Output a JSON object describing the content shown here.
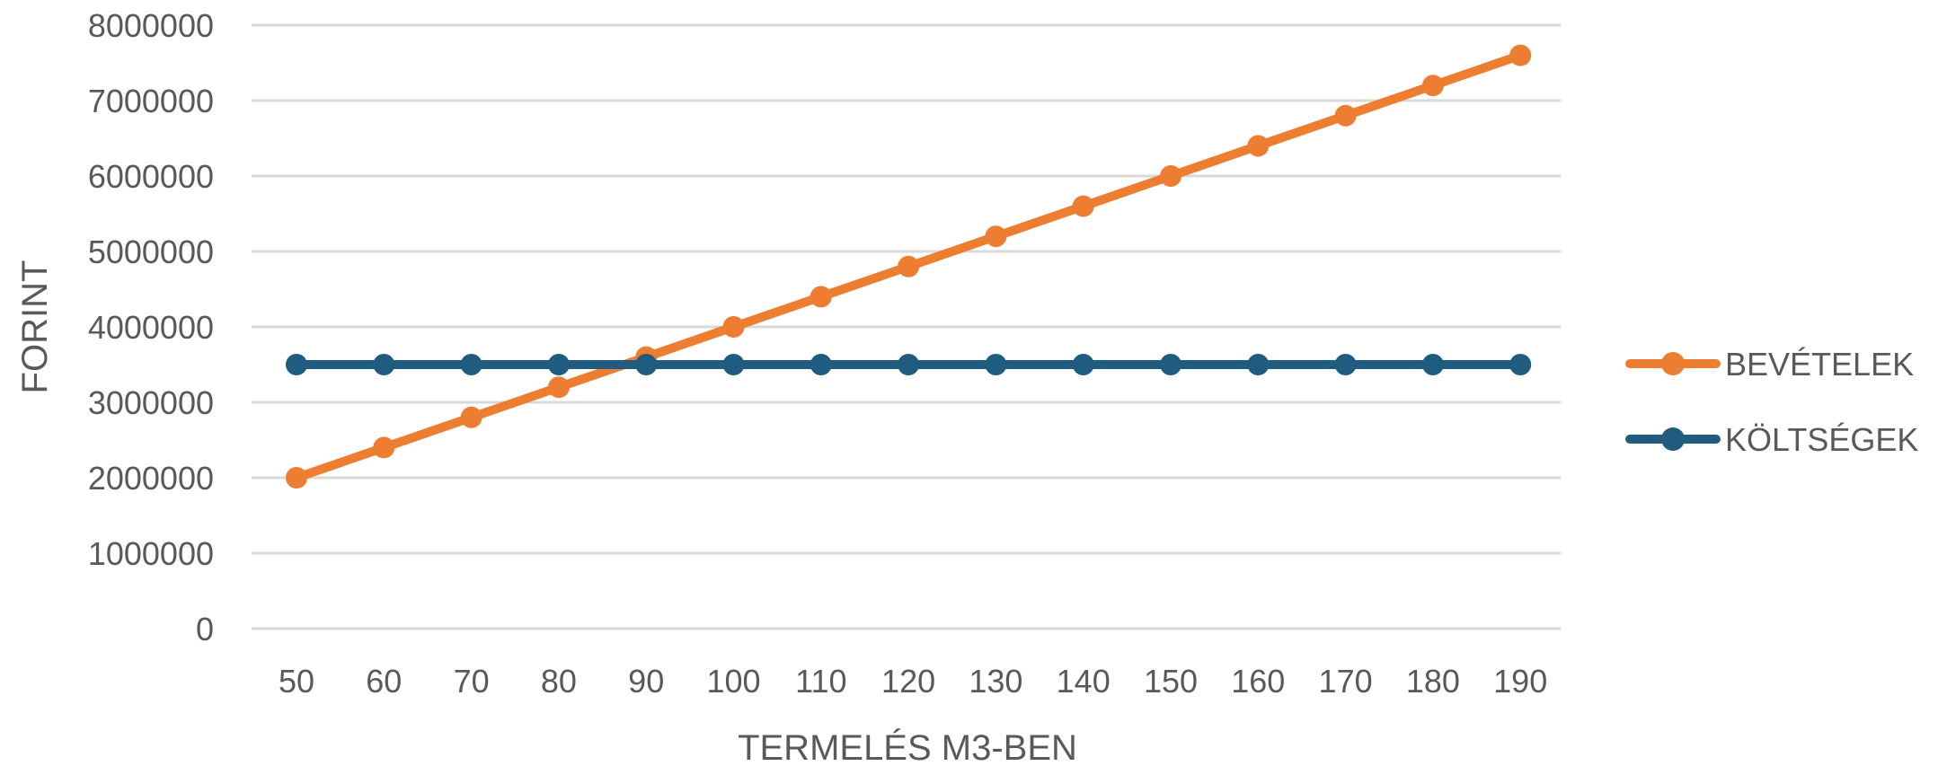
{
  "chart_data": {
    "type": "line",
    "xlabel": "TERMELÉS M3-BEN",
    "ylabel": "FORINT",
    "ylim": [
      0,
      8000000
    ],
    "yticks": [
      0,
      1000000,
      2000000,
      3000000,
      4000000,
      5000000,
      6000000,
      7000000,
      8000000
    ],
    "categories": [
      "50",
      "60",
      "70",
      "80",
      "90",
      "100",
      "110",
      "120",
      "130",
      "140",
      "150",
      "160",
      "170",
      "180",
      "190"
    ],
    "series": [
      {
        "name": "BEVÉTELEK",
        "color": "#ED7D31",
        "values": [
          2000000,
          2400000,
          2800000,
          3200000,
          3600000,
          4000000,
          4400000,
          4800000,
          5200000,
          5600000,
          6000000,
          6400000,
          6800000,
          7200000,
          7600000
        ]
      },
      {
        "name": "KÖLTSÉGEK",
        "color": "#1F5C7F",
        "values": [
          3500000,
          3500000,
          3500000,
          3500000,
          3500000,
          3500000,
          3500000,
          3500000,
          3500000,
          3500000,
          3500000,
          3500000,
          3500000,
          3500000,
          3500000
        ]
      }
    ],
    "drop_lines": true,
    "drop_line_color": "#8FD3EE",
    "grid": true,
    "grid_color": "#D9D9D9",
    "legend_position": "right"
  }
}
